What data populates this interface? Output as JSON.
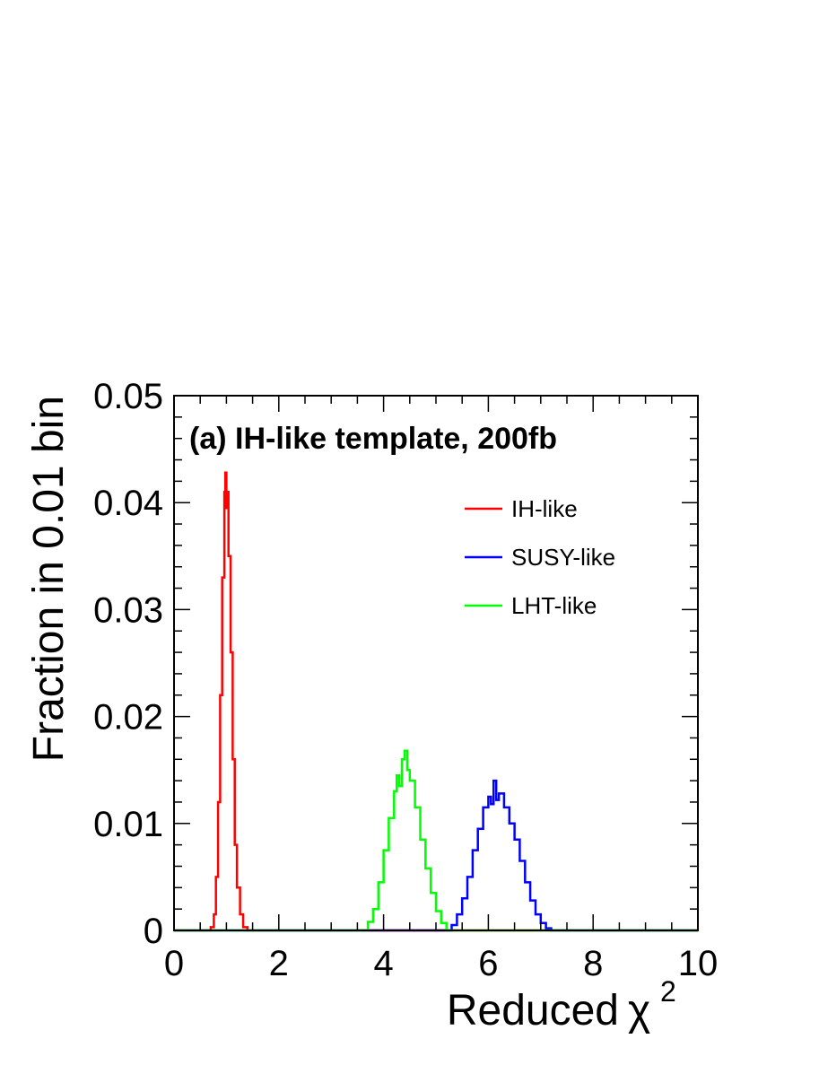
{
  "chart_data": {
    "type": "line",
    "title": "(a) IH-like template, 200fb",
    "xlabel": "Reduced",
    "xlabel_symbol": "χ",
    "xlabel_superscript": "2",
    "ylabel": "Fraction in 0.01 bin",
    "xlim": [
      0,
      10
    ],
    "ylim": [
      0,
      0.05
    ],
    "x_ticks": [
      "0",
      "2",
      "4",
      "6",
      "8",
      "10"
    ],
    "y_ticks": [
      "0",
      "0.01",
      "0.02",
      "0.03",
      "0.04",
      "0.05"
    ],
    "grid": false,
    "legend_position": "top-right",
    "series": [
      {
        "name": "IH-like",
        "color": "#ff0000",
        "x": [
          0.0,
          0.6,
          0.7,
          0.76,
          0.8,
          0.84,
          0.88,
          0.92,
          0.96,
          0.98,
          1.0,
          1.02,
          1.04,
          1.08,
          1.12,
          1.16,
          1.2,
          1.26,
          1.32,
          1.4,
          10.0
        ],
        "y": [
          0.0,
          0.0,
          0.0003,
          0.0015,
          0.005,
          0.012,
          0.022,
          0.033,
          0.041,
          0.0428,
          0.0395,
          0.041,
          0.035,
          0.026,
          0.016,
          0.008,
          0.004,
          0.0015,
          0.0003,
          0.0,
          0.0
        ]
      },
      {
        "name": "SUSY-like",
        "color": "#0000ff",
        "x": [
          0.0,
          5.2,
          5.3,
          5.4,
          5.5,
          5.6,
          5.7,
          5.8,
          5.9,
          6.0,
          6.05,
          6.1,
          6.15,
          6.2,
          6.3,
          6.4,
          6.5,
          6.6,
          6.7,
          6.8,
          6.9,
          7.0,
          7.1,
          7.2,
          10.0
        ],
        "y": [
          0.0,
          0.0,
          0.0005,
          0.0015,
          0.003,
          0.005,
          0.0075,
          0.0095,
          0.0115,
          0.0125,
          0.0118,
          0.014,
          0.0122,
          0.0128,
          0.0115,
          0.01,
          0.0085,
          0.0065,
          0.0045,
          0.0028,
          0.0015,
          0.0007,
          0.0002,
          0.0,
          0.0
        ]
      },
      {
        "name": "LHT-like",
        "color": "#00ff00",
        "x": [
          0.0,
          3.6,
          3.7,
          3.8,
          3.9,
          4.0,
          4.1,
          4.2,
          4.25,
          4.3,
          4.35,
          4.4,
          4.45,
          4.5,
          4.6,
          4.7,
          4.8,
          4.9,
          5.0,
          5.1,
          5.2,
          10.0
        ],
        "y": [
          0.0,
          0.0,
          0.0008,
          0.002,
          0.0045,
          0.0075,
          0.0105,
          0.013,
          0.0145,
          0.0135,
          0.016,
          0.0168,
          0.015,
          0.014,
          0.0115,
          0.0085,
          0.0058,
          0.0035,
          0.0018,
          0.0007,
          0.0,
          0.0
        ]
      }
    ]
  }
}
